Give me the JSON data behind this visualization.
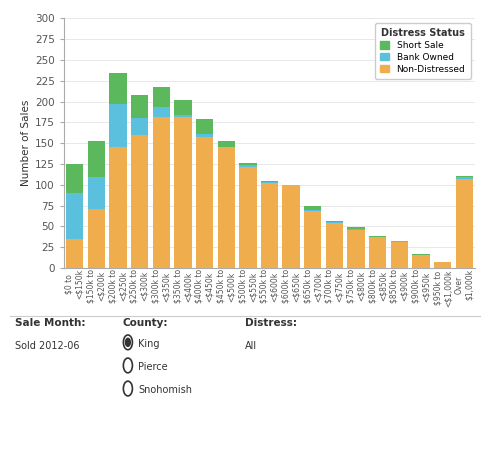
{
  "categories": [
    "$0 to\n<$150k",
    "$150k to\n<$200k",
    "$200k to\n<$250k",
    "$250k to\n<$300k",
    "$300k to\n<$350k",
    "$350k to\n<$400k",
    "$400k to\n<$450k",
    "$450k to\n<$500k",
    "$500k to\n<$550k",
    "$550k to\n<$600k",
    "$600k to\n<$650k",
    "$650k to\n<$700k",
    "$700k to\n<$750k",
    "$750k to\n<$800k",
    "$800k to\n<$850k",
    "$850k to\n<$900k",
    "$900k to\n<$950k",
    "$950k to\n<$1,000k",
    "Over\n$1,000k"
  ],
  "non_distressed": [
    35,
    71,
    145,
    160,
    181,
    181,
    158,
    145,
    122,
    102,
    100,
    68,
    54,
    46,
    37,
    31,
    16,
    7,
    107
  ],
  "bank_owned": [
    55,
    38,
    52,
    20,
    12,
    3,
    3,
    0,
    2,
    1,
    0,
    2,
    1,
    1,
    0,
    1,
    0,
    0,
    2
  ],
  "short_sale": [
    35,
    44,
    38,
    28,
    25,
    18,
    18,
    8,
    2,
    2,
    0,
    4,
    1,
    2,
    1,
    1,
    1,
    0,
    2
  ],
  "colors": {
    "short_sale": "#5cb85c",
    "bank_owned": "#5bc0de",
    "non_distressed": "#f0ad4e"
  },
  "ylabel": "Number of Sales",
  "ylim": [
    0,
    300
  ],
  "yticks": [
    0,
    25,
    50,
    75,
    100,
    125,
    150,
    175,
    200,
    225,
    250,
    275,
    300
  ],
  "legend_title": "Distress Status",
  "legend_labels": [
    "Short Sale",
    "Bank Owned",
    "Non-Distressed"
  ],
  "footer_sale_month_label": "Sale Month:",
  "footer_sale_month_value": "Sold 2012-06",
  "footer_county_label": "County:",
  "footer_county_options": [
    "King",
    "Pierce",
    "Snohomish"
  ],
  "footer_county_selected": 0,
  "footer_distress_label": "Distress:",
  "footer_distress_value": "All",
  "background_color": "#ffffff",
  "bar_width": 0.8,
  "grid_color": "#e8e8e8",
  "axis_line_color": "#aaaaaa",
  "font_color": "#333333",
  "tick_color": "#555555"
}
